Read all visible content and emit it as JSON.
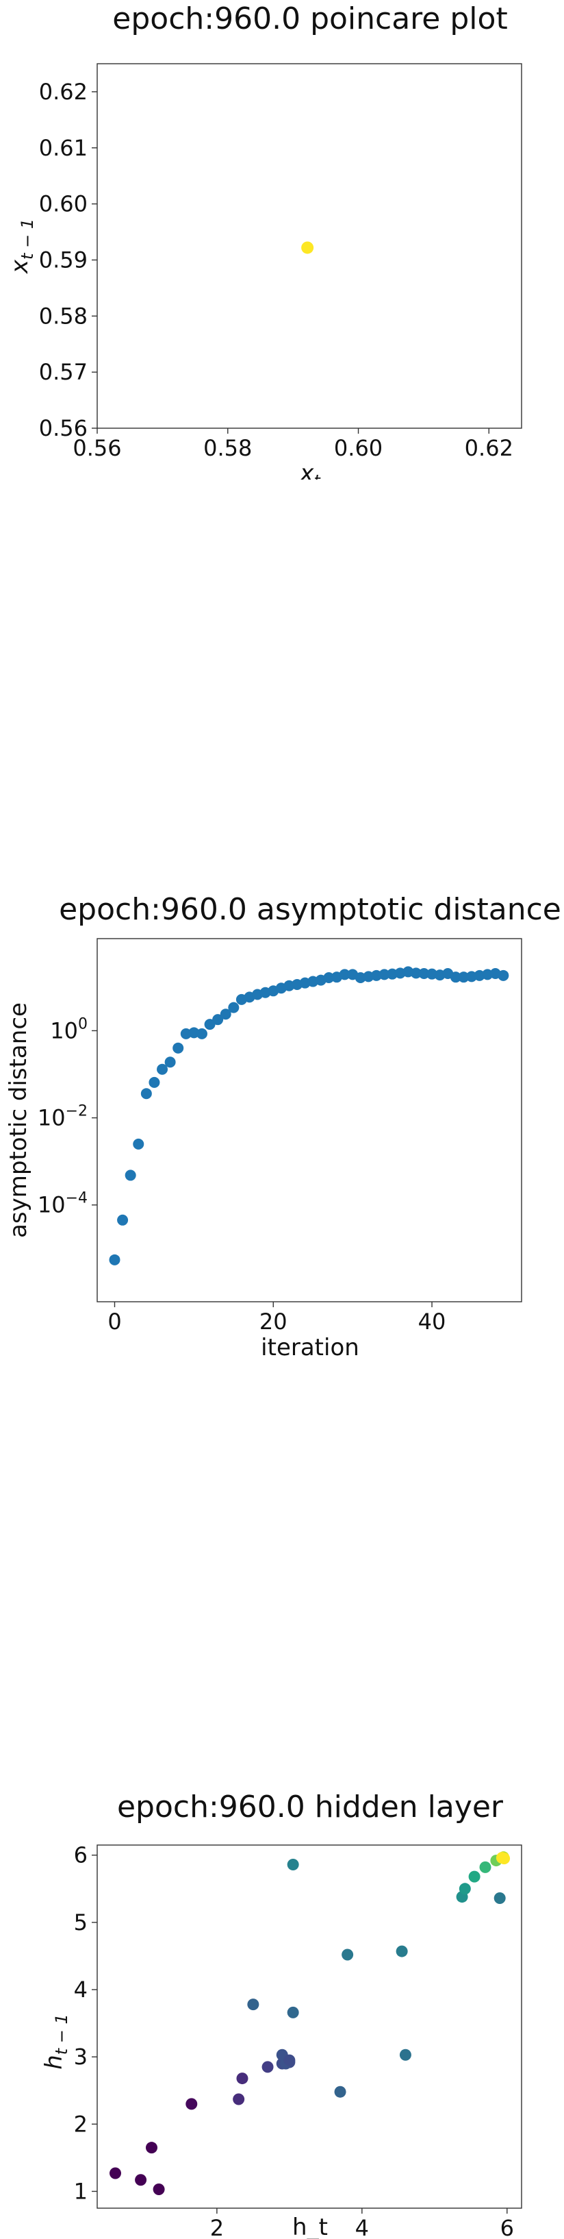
{
  "chart_data": [
    {
      "type": "scatter",
      "title": "epoch:960.0 poincare plot",
      "xlabel_main": "x",
      "xlabel_sub": "t",
      "ylabel_main": "x",
      "ylabel_sub": "t − 1",
      "xlim": [
        0.56,
        0.625
      ],
      "ylim": [
        0.56,
        0.625
      ],
      "xticks": [
        0.56,
        0.58,
        0.6,
        0.62
      ],
      "xtick_labels": [
        "0.56",
        "0.58",
        "0.60",
        "0.62"
      ],
      "yticks": [
        0.56,
        0.57,
        0.58,
        0.59,
        0.6,
        0.61,
        0.62
      ],
      "ytick_labels": [
        "0.56",
        "0.57",
        "0.58",
        "0.59",
        "0.60",
        "0.61",
        "0.62"
      ],
      "grid": false,
      "points": [
        {
          "x": 0.5922,
          "y": 0.5922,
          "color": "#fde725"
        }
      ]
    },
    {
      "type": "scatter",
      "title": "epoch:960.0 asymptotic distance",
      "xlabel": "iteration",
      "ylabel": "asymptotic distance",
      "yscale": "log",
      "xlim": [
        -2.2,
        51.3
      ],
      "ylim": [
        6e-07,
        130
      ],
      "xticks": [
        0,
        20,
        40
      ],
      "xtick_labels": [
        "0",
        "20",
        "40"
      ],
      "yticks": [
        0.0001,
        0.01,
        1
      ],
      "ytick_labels": [
        {
          "base": "10",
          "exp": "−4"
        },
        {
          "base": "10",
          "exp": "−2"
        },
        {
          "base": "10",
          "exp": "0"
        }
      ],
      "grid": false,
      "color": "#1f77b4",
      "x": [
        0,
        1,
        2,
        3,
        4,
        5,
        6,
        7,
        8,
        9,
        10,
        11,
        12,
        13,
        14,
        15,
        16,
        17,
        18,
        19,
        20,
        21,
        22,
        23,
        24,
        25,
        26,
        27,
        28,
        29,
        30,
        31,
        32,
        33,
        34,
        35,
        36,
        37,
        38,
        39,
        40,
        41,
        42,
        43,
        44,
        45,
        46,
        47,
        48,
        49
      ],
      "y": [
        5.5e-06,
        4.5e-05,
        0.00048,
        0.0025,
        0.036,
        0.065,
        0.13,
        0.19,
        0.4,
        0.85,
        0.9,
        0.85,
        1.4,
        1.8,
        2.4,
        3.4,
        5.2,
        5.9,
        6.8,
        7.5,
        8.2,
        9.5,
        10.8,
        11.5,
        12.5,
        13.5,
        14.5,
        16.5,
        17,
        19.5,
        19.5,
        16.5,
        17.5,
        18.5,
        19.5,
        20,
        21,
        22.5,
        21,
        20.5,
        20,
        19,
        20.5,
        17,
        17,
        17.5,
        18.5,
        19.5,
        20.5,
        18.5
      ]
    },
    {
      "type": "scatter",
      "title": "epoch:960.0 hidden layer",
      "xlabel": "h_t",
      "ylabel_main": "h",
      "ylabel_sub": "t − 1",
      "xlim": [
        0.35,
        6.2
      ],
      "ylim": [
        0.75,
        6.15
      ],
      "xticks": [
        2,
        4,
        6
      ],
      "xtick_labels": [
        "2",
        "4",
        "6"
      ],
      "yticks": [
        1,
        2,
        3,
        4,
        5,
        6
      ],
      "ytick_labels": [
        "1",
        "2",
        "3",
        "4",
        "5",
        "6"
      ],
      "grid": false,
      "points": [
        {
          "x": 0.6,
          "y": 1.27,
          "color": "#440154"
        },
        {
          "x": 0.95,
          "y": 1.17,
          "color": "#440154"
        },
        {
          "x": 1.2,
          "y": 1.03,
          "color": "#440154"
        },
        {
          "x": 1.1,
          "y": 1.65,
          "color": "#440154"
        },
        {
          "x": 1.65,
          "y": 2.3,
          "color": "#46085c"
        },
        {
          "x": 2.3,
          "y": 2.37,
          "color": "#472d7b"
        },
        {
          "x": 2.35,
          "y": 2.68,
          "color": "#472d7b"
        },
        {
          "x": 2.7,
          "y": 2.85,
          "color": "#433e85"
        },
        {
          "x": 2.9,
          "y": 2.9,
          "color": "#3e4c8a"
        },
        {
          "x": 2.95,
          "y": 2.95,
          "color": "#3e4c8a"
        },
        {
          "x": 3.0,
          "y": 2.92,
          "color": "#3e4c8a"
        },
        {
          "x": 2.9,
          "y": 3.03,
          "color": "#3b528b"
        },
        {
          "x": 2.95,
          "y": 2.9,
          "color": "#3b528b"
        },
        {
          "x": 3.0,
          "y": 2.95,
          "color": "#3e4c8a"
        },
        {
          "x": 3.7,
          "y": 2.48,
          "color": "#33638d"
        },
        {
          "x": 2.5,
          "y": 3.78,
          "color": "#33638d"
        },
        {
          "x": 3.05,
          "y": 3.66,
          "color": "#31688e"
        },
        {
          "x": 4.6,
          "y": 3.03,
          "color": "#2c728e"
        },
        {
          "x": 3.8,
          "y": 4.52,
          "color": "#2a788e"
        },
        {
          "x": 4.55,
          "y": 4.57,
          "color": "#287c8e"
        },
        {
          "x": 3.05,
          "y": 5.86,
          "color": "#26828e"
        },
        {
          "x": 5.38,
          "y": 5.38,
          "color": "#21918c"
        },
        {
          "x": 5.42,
          "y": 5.5,
          "color": "#1f9a8a"
        },
        {
          "x": 5.55,
          "y": 5.68,
          "color": "#22a884"
        },
        {
          "x": 5.7,
          "y": 5.82,
          "color": "#35b779"
        },
        {
          "x": 5.9,
          "y": 5.36,
          "color": "#2a788e"
        },
        {
          "x": 5.85,
          "y": 5.92,
          "color": "#6ece58"
        },
        {
          "x": 5.95,
          "y": 5.97,
          "color": "#b5de2b"
        },
        {
          "x": 5.93,
          "y": 5.96,
          "color": "#fde725"
        },
        {
          "x": 5.96,
          "y": 5.95,
          "color": "#fde725"
        }
      ]
    }
  ]
}
